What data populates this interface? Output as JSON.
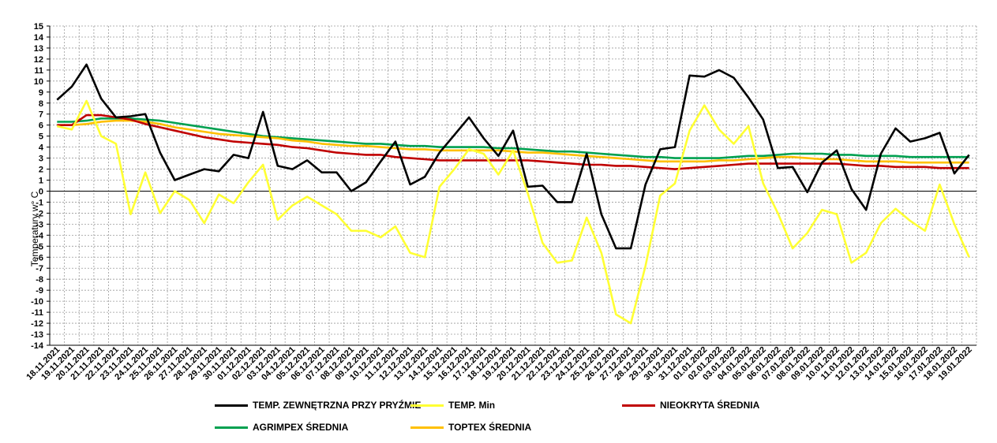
{
  "chart_data": {
    "type": "line",
    "ylabel": "Temperatury  w° C",
    "ylim": [
      -14,
      15
    ],
    "yticks": [
      15,
      14,
      13,
      12,
      11,
      10,
      9,
      8,
      7,
      6,
      5,
      4,
      3,
      2,
      1,
      0,
      -1,
      -2,
      -3,
      -4,
      -5,
      -6,
      -7,
      -8,
      -9,
      -10,
      -11,
      -12,
      -13,
      -14
    ],
    "grid": true,
    "legend_position": "bottom",
    "x": [
      "18.11.2021",
      "19.11.2021",
      "20.11.2021",
      "21.11.2021",
      "22.11.2021",
      "23.11.2021",
      "24.11.2021",
      "25.11.2021",
      "26.11.2021",
      "27.11.2021",
      "28.11.2021",
      "29.11.2021",
      "30.11.2021",
      "01.12.2021",
      "02.12.2021",
      "03.12.2021",
      "04.12.2021",
      "05.12.2021",
      "06.12.2021",
      "07.12.2021",
      "08.12.2021",
      "09.12.2021",
      "10.12.2021",
      "11.12.2021",
      "12.12.2021",
      "13.12.2021",
      "14.12.2021",
      "15.12.2021",
      "16.12.2021",
      "17.12.2021",
      "18.12.2021",
      "19.12.2021",
      "20.12.2021",
      "21.12.2021",
      "22.12.2021",
      "23.12.2021",
      "24.12.2021",
      "25.12.2021",
      "26.12.2021",
      "27.12.2021",
      "28.12.2021",
      "29.12.2021",
      "30.12.2021",
      "31.12.2021",
      "01.01.2022",
      "02.01.2022",
      "03.01.2022",
      "04.01.2022",
      "05.01.2022",
      "06.01.2022",
      "07.01.2022",
      "08.01.2022",
      "09.01.2022",
      "10.01.2022",
      "11.01.2022",
      "12.01.2022",
      "13.01.2022",
      "14.01.2022",
      "15.01.2022",
      "16.01.2022",
      "17.01.2022",
      "18.01.2022",
      "19.01.2022"
    ],
    "series": [
      {
        "name": "TEMP. ZEWNĘTRZNA PRZY PRYŹMIE",
        "color": "#000000",
        "values": [
          8.3,
          9.5,
          11.5,
          8.4,
          6.7,
          6.8,
          7.0,
          3.5,
          1.0,
          1.5,
          2.0,
          1.8,
          3.3,
          3.0,
          7.2,
          2.3,
          2.0,
          2.8,
          1.7,
          1.7,
          0.0,
          0.8,
          2.7,
          4.5,
          0.6,
          1.3,
          3.5,
          5.1,
          6.7,
          4.8,
          3.2,
          5.5,
          0.4,
          0.5,
          -1.0,
          -1.0,
          3.4,
          -2.1,
          -5.2,
          -5.2,
          0.6,
          3.8,
          4.0,
          10.5,
          10.4,
          11.0,
          10.3,
          8.5,
          6.5,
          2.1,
          2.2,
          -0.1,
          2.6,
          3.7,
          0.2,
          -1.7,
          3.4,
          5.7,
          4.5,
          4.8,
          5.3,
          1.6,
          3.3
        ]
      },
      {
        "name": "TEMP. Min",
        "color": "#ffff33",
        "values": [
          5.9,
          5.6,
          8.2,
          5.0,
          4.3,
          -2.1,
          1.7,
          -2.0,
          0.0,
          -0.8,
          -2.9,
          -0.3,
          -1.1,
          0.8,
          2.4,
          -2.6,
          -1.3,
          -0.5,
          -1.3,
          -2.1,
          -3.6,
          -3.6,
          -4.2,
          -3.2,
          -5.6,
          -6.0,
          0.4,
          2.0,
          3.8,
          3.4,
          1.5,
          3.7,
          -0.2,
          -4.7,
          -6.5,
          -6.3,
          -2.4,
          -5.6,
          -11.2,
          -12.0,
          -6.8,
          -0.4,
          0.7,
          5.5,
          7.8,
          5.6,
          4.3,
          5.9,
          0.7,
          -2.0,
          -5.2,
          -3.8,
          -1.7,
          -2.1,
          -6.5,
          -5.6,
          -2.9,
          -1.6,
          -2.7,
          -3.6,
          0.6,
          -3.0,
          -6.0
        ]
      },
      {
        "name": "NIEOKRYTA ŚREDNIA",
        "color": "#c00000",
        "values": [
          6.0,
          6.0,
          6.9,
          6.9,
          6.7,
          6.5,
          6.1,
          5.8,
          5.5,
          5.2,
          4.9,
          4.7,
          4.5,
          4.4,
          4.3,
          4.2,
          4.0,
          3.9,
          3.7,
          3.5,
          3.4,
          3.3,
          3.3,
          3.1,
          3.0,
          2.9,
          2.8,
          2.8,
          2.8,
          2.8,
          2.8,
          2.8,
          2.8,
          2.7,
          2.6,
          2.5,
          2.4,
          2.4,
          2.3,
          2.3,
          2.2,
          2.1,
          2.0,
          2.1,
          2.2,
          2.3,
          2.4,
          2.5,
          2.5,
          2.5,
          2.5,
          2.5,
          2.5,
          2.5,
          2.4,
          2.3,
          2.3,
          2.2,
          2.2,
          2.2,
          2.1,
          2.1,
          2.1
        ]
      },
      {
        "name": "AGRIMPEX ŚREDNIA",
        "color": "#00a050",
        "values": [
          6.3,
          6.3,
          6.4,
          6.6,
          6.6,
          6.6,
          6.5,
          6.4,
          6.2,
          6.0,
          5.8,
          5.6,
          5.4,
          5.2,
          5.0,
          4.9,
          4.8,
          4.7,
          4.6,
          4.5,
          4.4,
          4.3,
          4.3,
          4.2,
          4.1,
          4.1,
          4.0,
          4.0,
          4.0,
          4.0,
          3.9,
          3.9,
          3.8,
          3.7,
          3.6,
          3.6,
          3.5,
          3.4,
          3.3,
          3.2,
          3.1,
          3.1,
          3.0,
          3.0,
          3.0,
          3.0,
          3.1,
          3.2,
          3.2,
          3.3,
          3.4,
          3.4,
          3.4,
          3.3,
          3.3,
          3.2,
          3.2,
          3.2,
          3.1,
          3.1,
          3.1,
          3.1,
          3.1
        ]
      },
      {
        "name": "TOPTEX ŚREDNIA",
        "color": "#ffc000",
        "values": [
          6.0,
          6.0,
          6.1,
          6.3,
          6.4,
          6.4,
          6.3,
          6.1,
          5.8,
          5.6,
          5.4,
          5.2,
          5.1,
          5.0,
          4.9,
          4.8,
          4.6,
          4.5,
          4.3,
          4.2,
          4.1,
          4.1,
          4.0,
          3.9,
          3.8,
          3.8,
          3.7,
          3.7,
          3.7,
          3.7,
          3.7,
          3.6,
          3.5,
          3.5,
          3.4,
          3.3,
          3.2,
          3.1,
          3.0,
          2.9,
          2.8,
          2.7,
          2.7,
          2.7,
          2.7,
          2.8,
          2.8,
          2.9,
          3.0,
          3.1,
          3.1,
          3.0,
          2.9,
          2.9,
          2.8,
          2.7,
          2.7,
          2.7,
          2.6,
          2.6,
          2.6,
          2.6,
          2.6
        ]
      }
    ]
  }
}
